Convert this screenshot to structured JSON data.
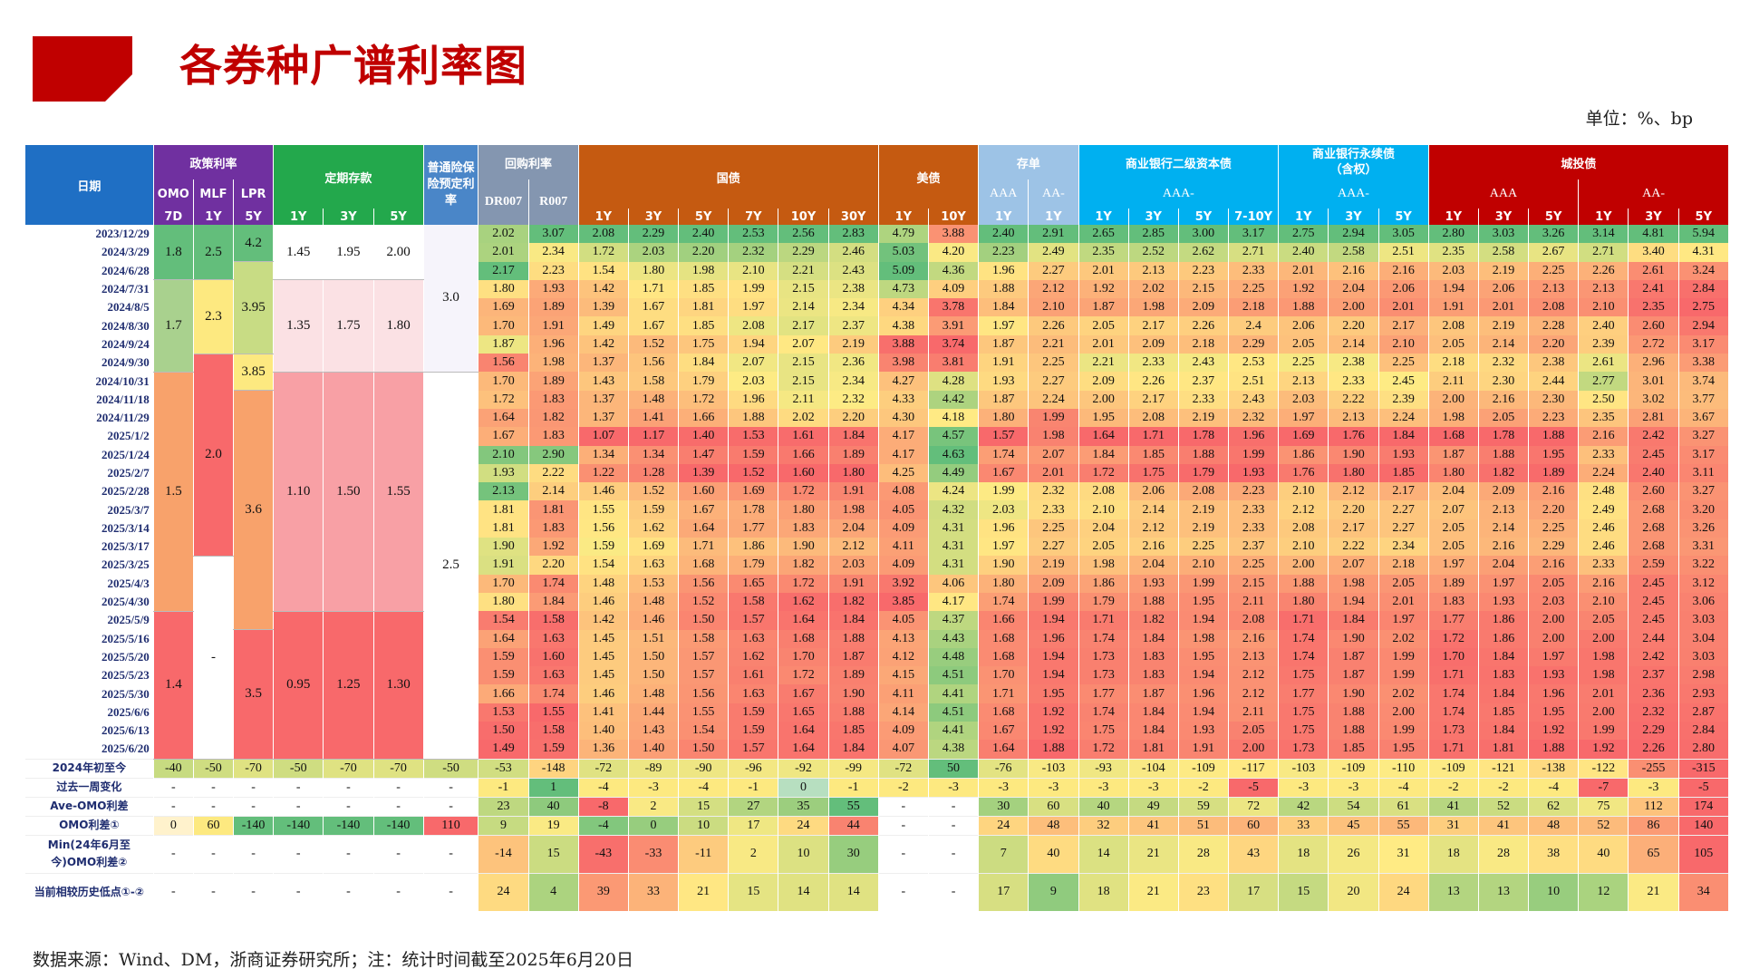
{
  "page": {
    "title": "各券种广谱利率图",
    "unit": "单位：%、bp",
    "source_note": "数据来源：Wind、DM，浙商证券研究所；注：统计时间截至2025年6月20日",
    "colors": {
      "brand": "#c00000",
      "header_blue": "#1f6fc4",
      "header_purple": "#7030a0",
      "header_green": "#23a84c",
      "header_orange": "#c55a11",
      "header_red": "#c00000"
    }
  },
  "header": {
    "date_label": "日期",
    "groups": [
      "政策利率",
      "定期存款",
      "普通险保险预定利率",
      "回购利率",
      "国债",
      "美债",
      "存单",
      "商业银行二级资本债",
      "商业银行永续债（含权）",
      "城投债"
    ],
    "perpetual_line1": "商业银行永续债",
    "perpetual_line2": "（含权）",
    "sub_policy": [
      "OMO",
      "MLF",
      "LPR"
    ],
    "sub_aaa_minus": "AAA-",
    "sub_perp_aaa_minus": "AAA-",
    "sub_cd": [
      "AAA",
      "AA-"
    ],
    "sub_lgfv": [
      "AAA",
      "AA-"
    ],
    "sub_repo": [
      "DR007",
      "R007"
    ],
    "tenors": {
      "policy": [
        "7D",
        "1Y",
        "5Y"
      ],
      "deposit": [
        "1Y",
        "3Y",
        "5Y"
      ],
      "govt": [
        "1Y",
        "3Y",
        "5Y",
        "7Y",
        "10Y",
        "30Y"
      ],
      "ust": [
        "1Y",
        "10Y"
      ],
      "cd": [
        "1Y",
        "1Y"
      ],
      "tier2": [
        "1Y",
        "3Y",
        "5Y",
        "7-10Y"
      ],
      "perp": [
        "1Y",
        "3Y",
        "5Y"
      ],
      "lgfv": [
        "1Y",
        "3Y",
        "5Y",
        "1Y",
        "3Y",
        "5Y"
      ]
    }
  },
  "rows": [
    {
      "date": "2023/12/29",
      "v": [
        "2.02",
        "3.07",
        "2.08",
        "2.29",
        "2.40",
        "2.53",
        "2.56",
        "2.83",
        "4.79",
        "3.88",
        "2.40",
        "2.91",
        "2.65",
        "2.85",
        "3.00",
        "3.17",
        "2.75",
        "2.94",
        "3.05",
        "2.80",
        "3.03",
        "3.26",
        "3.14",
        "4.81",
        "5.94"
      ]
    },
    {
      "date": "2024/3/29",
      "v": [
        "2.01",
        "2.34",
        "1.72",
        "2.03",
        "2.20",
        "2.32",
        "2.29",
        "2.46",
        "5.03",
        "4.20",
        "2.23",
        "2.49",
        "2.35",
        "2.52",
        "2.62",
        "2.71",
        "2.40",
        "2.58",
        "2.51",
        "2.35",
        "2.58",
        "2.67",
        "2.71",
        "3.40",
        "4.31"
      ]
    },
    {
      "date": "2024/6/28",
      "v": [
        "2.17",
        "2.23",
        "1.54",
        "1.80",
        "1.98",
        "2.10",
        "2.21",
        "2.43",
        "5.09",
        "4.36",
        "1.96",
        "2.27",
        "2.01",
        "2.13",
        "2.23",
        "2.33",
        "2.01",
        "2.16",
        "2.16",
        "2.03",
        "2.19",
        "2.25",
        "2.26",
        "2.61",
        "3.24"
      ]
    },
    {
      "date": "2024/7/31",
      "v": [
        "1.80",
        "1.93",
        "1.42",
        "1.71",
        "1.85",
        "1.99",
        "2.15",
        "2.38",
        "4.73",
        "4.09",
        "1.88",
        "2.12",
        "1.92",
        "2.02",
        "2.15",
        "2.25",
        "1.92",
        "2.04",
        "2.06",
        "1.94",
        "2.06",
        "2.13",
        "2.13",
        "2.41",
        "2.84"
      ]
    },
    {
      "date": "2024/8/5",
      "v": [
        "1.69",
        "1.89",
        "1.39",
        "1.67",
        "1.81",
        "1.97",
        "2.14",
        "2.34",
        "4.34",
        "3.78",
        "1.84",
        "2.10",
        "1.87",
        "1.98",
        "2.09",
        "2.18",
        "1.88",
        "2.00",
        "2.01",
        "1.91",
        "2.01",
        "2.08",
        "2.10",
        "2.35",
        "2.75"
      ]
    },
    {
      "date": "2024/8/30",
      "v": [
        "1.70",
        "1.91",
        "1.49",
        "1.67",
        "1.85",
        "2.08",
        "2.17",
        "2.37",
        "4.38",
        "3.91",
        "1.97",
        "2.26",
        "2.05",
        "2.17",
        "2.26",
        "2.4",
        "2.06",
        "2.20",
        "2.17",
        "2.08",
        "2.19",
        "2.28",
        "2.40",
        "2.60",
        "2.94"
      ]
    },
    {
      "date": "2024/9/24",
      "v": [
        "1.87",
        "1.96",
        "1.42",
        "1.52",
        "1.75",
        "1.94",
        "2.07",
        "2.19",
        "3.88",
        "3.74",
        "1.87",
        "2.21",
        "2.01",
        "2.09",
        "2.18",
        "2.29",
        "2.05",
        "2.14",
        "2.10",
        "2.05",
        "2.14",
        "2.20",
        "2.39",
        "2.72",
        "3.17"
      ]
    },
    {
      "date": "2024/9/30",
      "v": [
        "1.56",
        "1.98",
        "1.37",
        "1.56",
        "1.84",
        "2.07",
        "2.15",
        "2.36",
        "3.98",
        "3.81",
        "1.91",
        "2.25",
        "2.21",
        "2.33",
        "2.43",
        "2.53",
        "2.25",
        "2.38",
        "2.25",
        "2.18",
        "2.32",
        "2.38",
        "2.61",
        "2.96",
        "3.38"
      ]
    },
    {
      "date": "2024/10/31",
      "v": [
        "1.70",
        "1.89",
        "1.43",
        "1.58",
        "1.79",
        "2.03",
        "2.15",
        "2.34",
        "4.27",
        "4.28",
        "1.93",
        "2.27",
        "2.09",
        "2.26",
        "2.37",
        "2.51",
        "2.13",
        "2.33",
        "2.45",
        "2.11",
        "2.30",
        "2.44",
        "2.77",
        "3.01",
        "3.74"
      ]
    },
    {
      "date": "2024/11/18",
      "v": [
        "1.72",
        "1.83",
        "1.37",
        "1.48",
        "1.72",
        "1.96",
        "2.11",
        "2.32",
        "4.33",
        "4.42",
        "1.87",
        "2.24",
        "2.00",
        "2.17",
        "2.33",
        "2.43",
        "2.03",
        "2.22",
        "2.39",
        "2.00",
        "2.16",
        "2.30",
        "2.50",
        "3.02",
        "3.77"
      ]
    },
    {
      "date": "2024/11/29",
      "v": [
        "1.64",
        "1.82",
        "1.37",
        "1.41",
        "1.66",
        "1.88",
        "2.02",
        "2.20",
        "4.30",
        "4.18",
        "1.80",
        "1.99",
        "1.95",
        "2.08",
        "2.19",
        "2.32",
        "1.97",
        "2.13",
        "2.24",
        "1.98",
        "2.05",
        "2.23",
        "2.35",
        "2.81",
        "3.67"
      ]
    },
    {
      "date": "2025/1/2",
      "v": [
        "1.67",
        "1.83",
        "1.07",
        "1.17",
        "1.40",
        "1.53",
        "1.61",
        "1.84",
        "4.17",
        "4.57",
        "1.57",
        "1.98",
        "1.64",
        "1.71",
        "1.78",
        "1.96",
        "1.69",
        "1.76",
        "1.84",
        "1.68",
        "1.78",
        "1.88",
        "2.16",
        "2.42",
        "3.27"
      ]
    },
    {
      "date": "2025/1/24",
      "v": [
        "2.10",
        "2.90",
        "1.34",
        "1.34",
        "1.47",
        "1.59",
        "1.66",
        "1.89",
        "4.17",
        "4.63",
        "1.74",
        "2.07",
        "1.84",
        "1.85",
        "1.88",
        "1.99",
        "1.86",
        "1.90",
        "1.93",
        "1.87",
        "1.88",
        "1.95",
        "2.33",
        "2.45",
        "3.17"
      ]
    },
    {
      "date": "2025/2/7",
      "v": [
        "1.93",
        "2.22",
        "1.22",
        "1.28",
        "1.39",
        "1.52",
        "1.60",
        "1.80",
        "4.25",
        "4.49",
        "1.67",
        "2.01",
        "1.72",
        "1.75",
        "1.79",
        "1.93",
        "1.76",
        "1.80",
        "1.85",
        "1.80",
        "1.82",
        "1.89",
        "2.24",
        "2.40",
        "3.11"
      ]
    },
    {
      "date": "2025/2/28",
      "v": [
        "2.13",
        "2.14",
        "1.46",
        "1.52",
        "1.60",
        "1.69",
        "1.72",
        "1.91",
        "4.08",
        "4.24",
        "1.99",
        "2.32",
        "2.08",
        "2.06",
        "2.08",
        "2.23",
        "2.10",
        "2.12",
        "2.17",
        "2.04",
        "2.09",
        "2.16",
        "2.48",
        "2.60",
        "3.27"
      ]
    },
    {
      "date": "2025/3/7",
      "v": [
        "1.81",
        "1.81",
        "1.55",
        "1.59",
        "1.67",
        "1.78",
        "1.80",
        "1.98",
        "4.05",
        "4.32",
        "2.03",
        "2.33",
        "2.10",
        "2.14",
        "2.19",
        "2.33",
        "2.12",
        "2.20",
        "2.27",
        "2.07",
        "2.13",
        "2.20",
        "2.49",
        "2.68",
        "3.20"
      ]
    },
    {
      "date": "2025/3/14",
      "v": [
        "1.81",
        "1.83",
        "1.56",
        "1.62",
        "1.64",
        "1.77",
        "1.83",
        "2.04",
        "4.09",
        "4.31",
        "1.96",
        "2.25",
        "2.04",
        "2.12",
        "2.19",
        "2.33",
        "2.08",
        "2.17",
        "2.27",
        "2.05",
        "2.14",
        "2.25",
        "2.46",
        "2.68",
        "3.26"
      ]
    },
    {
      "date": "2025/3/17",
      "v": [
        "1.90",
        "1.92",
        "1.59",
        "1.69",
        "1.71",
        "1.86",
        "1.90",
        "2.12",
        "4.11",
        "4.31",
        "1.97",
        "2.27",
        "2.05",
        "2.16",
        "2.25",
        "2.37",
        "2.10",
        "2.22",
        "2.34",
        "2.05",
        "2.16",
        "2.29",
        "2.46",
        "2.68",
        "3.31"
      ]
    },
    {
      "date": "2025/3/25",
      "v": [
        "1.91",
        "2.20",
        "1.54",
        "1.63",
        "1.68",
        "1.79",
        "1.82",
        "2.03",
        "4.09",
        "4.31",
        "1.90",
        "2.19",
        "1.98",
        "2.04",
        "2.10",
        "2.25",
        "2.00",
        "2.07",
        "2.18",
        "1.97",
        "2.04",
        "2.16",
        "2.33",
        "2.59",
        "3.22"
      ]
    },
    {
      "date": "2025/4/3",
      "v": [
        "1.70",
        "1.74",
        "1.48",
        "1.53",
        "1.56",
        "1.65",
        "1.72",
        "1.91",
        "3.92",
        "4.06",
        "1.80",
        "2.09",
        "1.86",
        "1.93",
        "1.99",
        "2.15",
        "1.88",
        "1.98",
        "2.05",
        "1.89",
        "1.97",
        "2.05",
        "2.16",
        "2.45",
        "3.12"
      ]
    },
    {
      "date": "2025/4/30",
      "v": [
        "1.80",
        "1.84",
        "1.46",
        "1.48",
        "1.52",
        "1.58",
        "1.62",
        "1.82",
        "3.85",
        "4.17",
        "1.74",
        "1.99",
        "1.79",
        "1.88",
        "1.95",
        "2.11",
        "1.80",
        "1.94",
        "2.01",
        "1.83",
        "1.93",
        "2.03",
        "2.10",
        "2.45",
        "3.06"
      ]
    },
    {
      "date": "2025/5/9",
      "v": [
        "1.54",
        "1.58",
        "1.42",
        "1.46",
        "1.50",
        "1.57",
        "1.64",
        "1.84",
        "4.05",
        "4.37",
        "1.66",
        "1.94",
        "1.71",
        "1.82",
        "1.94",
        "2.08",
        "1.71",
        "1.84",
        "1.97",
        "1.77",
        "1.86",
        "2.00",
        "2.05",
        "2.45",
        "3.03"
      ]
    },
    {
      "date": "2025/5/16",
      "v": [
        "1.64",
        "1.63",
        "1.45",
        "1.51",
        "1.58",
        "1.63",
        "1.68",
        "1.88",
        "4.13",
        "4.43",
        "1.68",
        "1.96",
        "1.74",
        "1.84",
        "1.98",
        "2.16",
        "1.74",
        "1.90",
        "2.02",
        "1.72",
        "1.86",
        "2.00",
        "2.00",
        "2.44",
        "3.04"
      ]
    },
    {
      "date": "2025/5/20",
      "v": [
        "1.59",
        "1.60",
        "1.45",
        "1.50",
        "1.57",
        "1.62",
        "1.70",
        "1.87",
        "4.12",
        "4.48",
        "1.68",
        "1.94",
        "1.73",
        "1.83",
        "1.95",
        "2.13",
        "1.74",
        "1.87",
        "1.99",
        "1.70",
        "1.84",
        "1.97",
        "1.98",
        "2.42",
        "3.03"
      ]
    },
    {
      "date": "2025/5/23",
      "v": [
        "1.59",
        "1.63",
        "1.45",
        "1.50",
        "1.57",
        "1.61",
        "1.72",
        "1.89",
        "4.15",
        "4.51",
        "1.70",
        "1.94",
        "1.73",
        "1.83",
        "1.94",
        "2.12",
        "1.75",
        "1.87",
        "1.99",
        "1.71",
        "1.83",
        "1.93",
        "1.98",
        "2.37",
        "2.98"
      ]
    },
    {
      "date": "2025/5/30",
      "v": [
        "1.66",
        "1.74",
        "1.46",
        "1.48",
        "1.56",
        "1.63",
        "1.67",
        "1.90",
        "4.11",
        "4.41",
        "1.71",
        "1.95",
        "1.77",
        "1.87",
        "1.96",
        "2.12",
        "1.77",
        "1.90",
        "2.02",
        "1.74",
        "1.84",
        "1.96",
        "2.01",
        "2.36",
        "2.93"
      ]
    },
    {
      "date": "2025/6/6",
      "v": [
        "1.53",
        "1.55",
        "1.41",
        "1.44",
        "1.55",
        "1.59",
        "1.65",
        "1.88",
        "4.14",
        "4.51",
        "1.68",
        "1.92",
        "1.74",
        "1.84",
        "1.94",
        "2.11",
        "1.75",
        "1.88",
        "2.00",
        "1.74",
        "1.85",
        "1.95",
        "2.00",
        "2.32",
        "2.87"
      ]
    },
    {
      "date": "2025/6/13",
      "v": [
        "1.50",
        "1.58",
        "1.40",
        "1.43",
        "1.54",
        "1.59",
        "1.64",
        "1.85",
        "4.09",
        "4.41",
        "1.67",
        "1.92",
        "1.75",
        "1.84",
        "1.93",
        "2.05",
        "1.75",
        "1.88",
        "1.99",
        "1.73",
        "1.84",
        "1.92",
        "1.99",
        "2.29",
        "2.84"
      ]
    },
    {
      "date": "2025/6/20",
      "v": [
        "1.49",
        "1.59",
        "1.36",
        "1.40",
        "1.50",
        "1.57",
        "1.64",
        "1.84",
        "4.07",
        "4.38",
        "1.64",
        "1.88",
        "1.72",
        "1.81",
        "1.91",
        "2.00",
        "1.73",
        "1.85",
        "1.95",
        "1.71",
        "1.81",
        "1.88",
        "1.92",
        "2.26",
        "2.80"
      ]
    }
  ],
  "left_blocks": {
    "omo": [
      {
        "label": "1.8",
        "rows": 3
      },
      {
        "label": "1.7",
        "rows": 5
      },
      {
        "label": "1.5",
        "rows": 13
      },
      {
        "label": "1.4",
        "rows": 8
      }
    ],
    "mlf": [
      {
        "label": "2.5",
        "rows": 3
      },
      {
        "label": "2.3",
        "rows": 4
      },
      {
        "label": "2.0",
        "rows": 11
      },
      {
        "label": "-",
        "rows": 11
      }
    ],
    "lpr": [
      {
        "label": "4.2",
        "rows": 2
      },
      {
        "label": "3.95",
        "rows": 5
      },
      {
        "label": "3.85",
        "rows": 2
      },
      {
        "label": "3.6",
        "rows": 13
      },
      {
        "label": "3.5",
        "rows": 7
      }
    ],
    "dep1": [
      {
        "label": "1.45",
        "rows": 3
      },
      {
        "label": "1.35",
        "rows": 5
      },
      {
        "label": "1.10",
        "rows": 13
      },
      {
        "label": "0.95",
        "rows": 8
      }
    ],
    "dep3": [
      {
        "label": "1.95",
        "rows": 3
      },
      {
        "label": "1.75",
        "rows": 5
      },
      {
        "label": "1.50",
        "rows": 13
      },
      {
        "label": "1.25",
        "rows": 8
      }
    ],
    "dep5": [
      {
        "label": "2.00",
        "rows": 3
      },
      {
        "label": "1.80",
        "rows": 5
      },
      {
        "label": "1.55",
        "rows": 13
      },
      {
        "label": "1.30",
        "rows": 8
      }
    ],
    "ins": [
      {
        "label": "3.0",
        "rows": 8
      },
      {
        "label": "2.5",
        "rows": 21
      }
    ]
  },
  "summary": [
    {
      "label": "2024年初至今",
      "v": [
        "-40",
        "-50",
        "-70",
        "-50",
        "-70",
        "-70",
        "-50",
        "-53",
        "-148",
        "-72",
        "-89",
        "-90",
        "-96",
        "-92",
        "-99",
        "-72",
        "50",
        "-76",
        "-103",
        "-93",
        "-104",
        "-109",
        "-117",
        "-103",
        "-109",
        "-110",
        "-109",
        "-121",
        "-138",
        "-122",
        "-255",
        "-315"
      ]
    },
    {
      "label": "过去一周变化",
      "v": [
        "-",
        "-",
        "-",
        "-",
        "-",
        "-",
        "-",
        "-1",
        "1",
        "-4",
        "-3",
        "-4",
        "-1",
        "0",
        "-1",
        "-2",
        "-3",
        "-3",
        "-3",
        "-3",
        "-3",
        "-2",
        "-5",
        "-3",
        "-3",
        "-4",
        "-2",
        "-2",
        "-4",
        "-7",
        "-3",
        "-5"
      ]
    },
    {
      "label": "Ave-OMO利差",
      "v": [
        "-",
        "-",
        "-",
        "-",
        "-",
        "-",
        "-",
        "23",
        "40",
        "-8",
        "2",
        "15",
        "27",
        "35",
        "55",
        "-",
        "-",
        "30",
        "60",
        "40",
        "49",
        "59",
        "72",
        "42",
        "54",
        "61",
        "41",
        "52",
        "62",
        "75",
        "112",
        "174"
      ]
    },
    {
      "label": "OMO利差①",
      "v": [
        "0",
        "60",
        "-140",
        "-140",
        "-140",
        "-140",
        "110",
        "9",
        "19",
        "-4",
        "0",
        "10",
        "17",
        "24",
        "44",
        "-",
        "-",
        "24",
        "48",
        "32",
        "41",
        "51",
        "60",
        "33",
        "45",
        "55",
        "31",
        "41",
        "48",
        "52",
        "86",
        "140"
      ]
    },
    {
      "label": "Min(24年6月至今)OMO利差②",
      "v": [
        "-",
        "-",
        "-",
        "-",
        "-",
        "-",
        "-",
        "-14",
        "15",
        "-43",
        "-33",
        "-11",
        "2",
        "10",
        "30",
        "-",
        "-",
        "7",
        "40",
        "14",
        "21",
        "28",
        "43",
        "18",
        "26",
        "31",
        "18",
        "28",
        "38",
        "40",
        "65",
        "105"
      ]
    },
    {
      "label": "当前相较历史低点①-②",
      "v": [
        "-",
        "-",
        "-",
        "-",
        "-",
        "-",
        "-",
        "24",
        "4",
        "39",
        "33",
        "21",
        "15",
        "14",
        "14",
        "-",
        "-",
        "17",
        "9",
        "18",
        "21",
        "23",
        "17",
        "15",
        "20",
        "24",
        "13",
        "13",
        "10",
        "12",
        "21",
        "34"
      ]
    }
  ]
}
